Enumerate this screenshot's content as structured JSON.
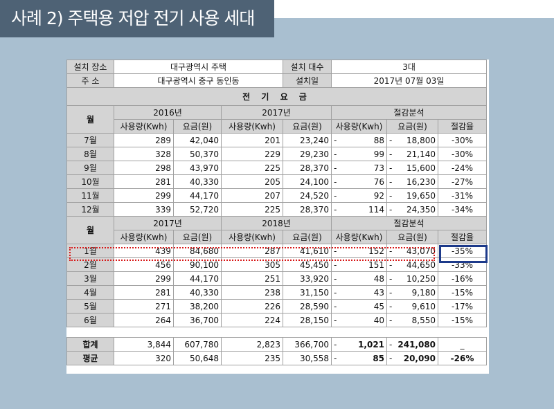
{
  "title": "사례 2) 주택용 저압 전기 사용 세대",
  "info": {
    "loc_label": "설치 장소",
    "loc_value": "대구광역시 주택",
    "count_label": "설치 대수",
    "count_value": "3대",
    "addr_label": "주 소",
    "addr_value": "대구광역시 중구 동인동",
    "date_label": "설치일",
    "date_value": "2017년 07월 03일"
  },
  "section_title": "전 기 요 금",
  "headers": {
    "month": "월",
    "year_a1": "2016년",
    "year_b1": "2017년",
    "year_a2": "2017년",
    "year_b2": "2018년",
    "analysis": "절감분석",
    "usage": "사용량(Kwh)",
    "fee": "요금(원)",
    "rate": "절감율"
  },
  "rows1": [
    {
      "month": "7월",
      "u1": "289",
      "f1": "42,040",
      "u2": "201",
      "f2": "23,240",
      "du": "88",
      "df": "18,800",
      "rate": "-30%"
    },
    {
      "month": "8월",
      "u1": "328",
      "f1": "50,370",
      "u2": "229",
      "f2": "29,230",
      "du": "99",
      "df": "21,140",
      "rate": "-30%"
    },
    {
      "month": "9월",
      "u1": "298",
      "f1": "43,970",
      "u2": "225",
      "f2": "28,370",
      "du": "73",
      "df": "15,600",
      "rate": "-24%"
    },
    {
      "month": "10월",
      "u1": "281",
      "f1": "40,330",
      "u2": "205",
      "f2": "24,100",
      "du": "76",
      "df": "16,230",
      "rate": "-27%"
    },
    {
      "month": "11월",
      "u1": "299",
      "f1": "44,170",
      "u2": "207",
      "f2": "24,520",
      "du": "92",
      "df": "19,650",
      "rate": "-31%"
    },
    {
      "month": "12월",
      "u1": "339",
      "f1": "52,720",
      "u2": "225",
      "f2": "28,370",
      "du": "114",
      "df": "24,350",
      "rate": "-34%"
    }
  ],
  "rows2": [
    {
      "month": "1월",
      "u1": "439",
      "f1": "84,680",
      "u2": "287",
      "f2": "41,610",
      "du": "152",
      "df": "43,070",
      "rate": "-35%"
    },
    {
      "month": "2월",
      "u1": "456",
      "f1": "90,100",
      "u2": "305",
      "f2": "45,450",
      "du": "151",
      "df": "44,650",
      "rate": "-33%"
    },
    {
      "month": "3월",
      "u1": "299",
      "f1": "44,170",
      "u2": "251",
      "f2": "33,920",
      "du": "48",
      "df": "10,250",
      "rate": "-16%"
    },
    {
      "month": "4월",
      "u1": "281",
      "f1": "40,330",
      "u2": "238",
      "f2": "31,150",
      "du": "43",
      "df": "9,180",
      "rate": "-15%"
    },
    {
      "month": "5월",
      "u1": "271",
      "f1": "38,200",
      "u2": "226",
      "f2": "28,590",
      "du": "45",
      "df": "9,610",
      "rate": "-17%"
    },
    {
      "month": "6월",
      "u1": "264",
      "f1": "36,700",
      "u2": "224",
      "f2": "28,150",
      "du": "40",
      "df": "8,550",
      "rate": "-15%"
    }
  ],
  "dash": "-",
  "total": {
    "label": "합계",
    "u1": "3,844",
    "f1": "607,780",
    "u2": "2,823",
    "f2": "366,700",
    "du": "1,021",
    "df": "241,080",
    "rate": "_"
  },
  "avg": {
    "label": "평균",
    "u1": "320",
    "f1": "50,648",
    "u2": "235",
    "f2": "30,558",
    "du": "85",
    "df": "20,090",
    "rate": "-26%"
  }
}
